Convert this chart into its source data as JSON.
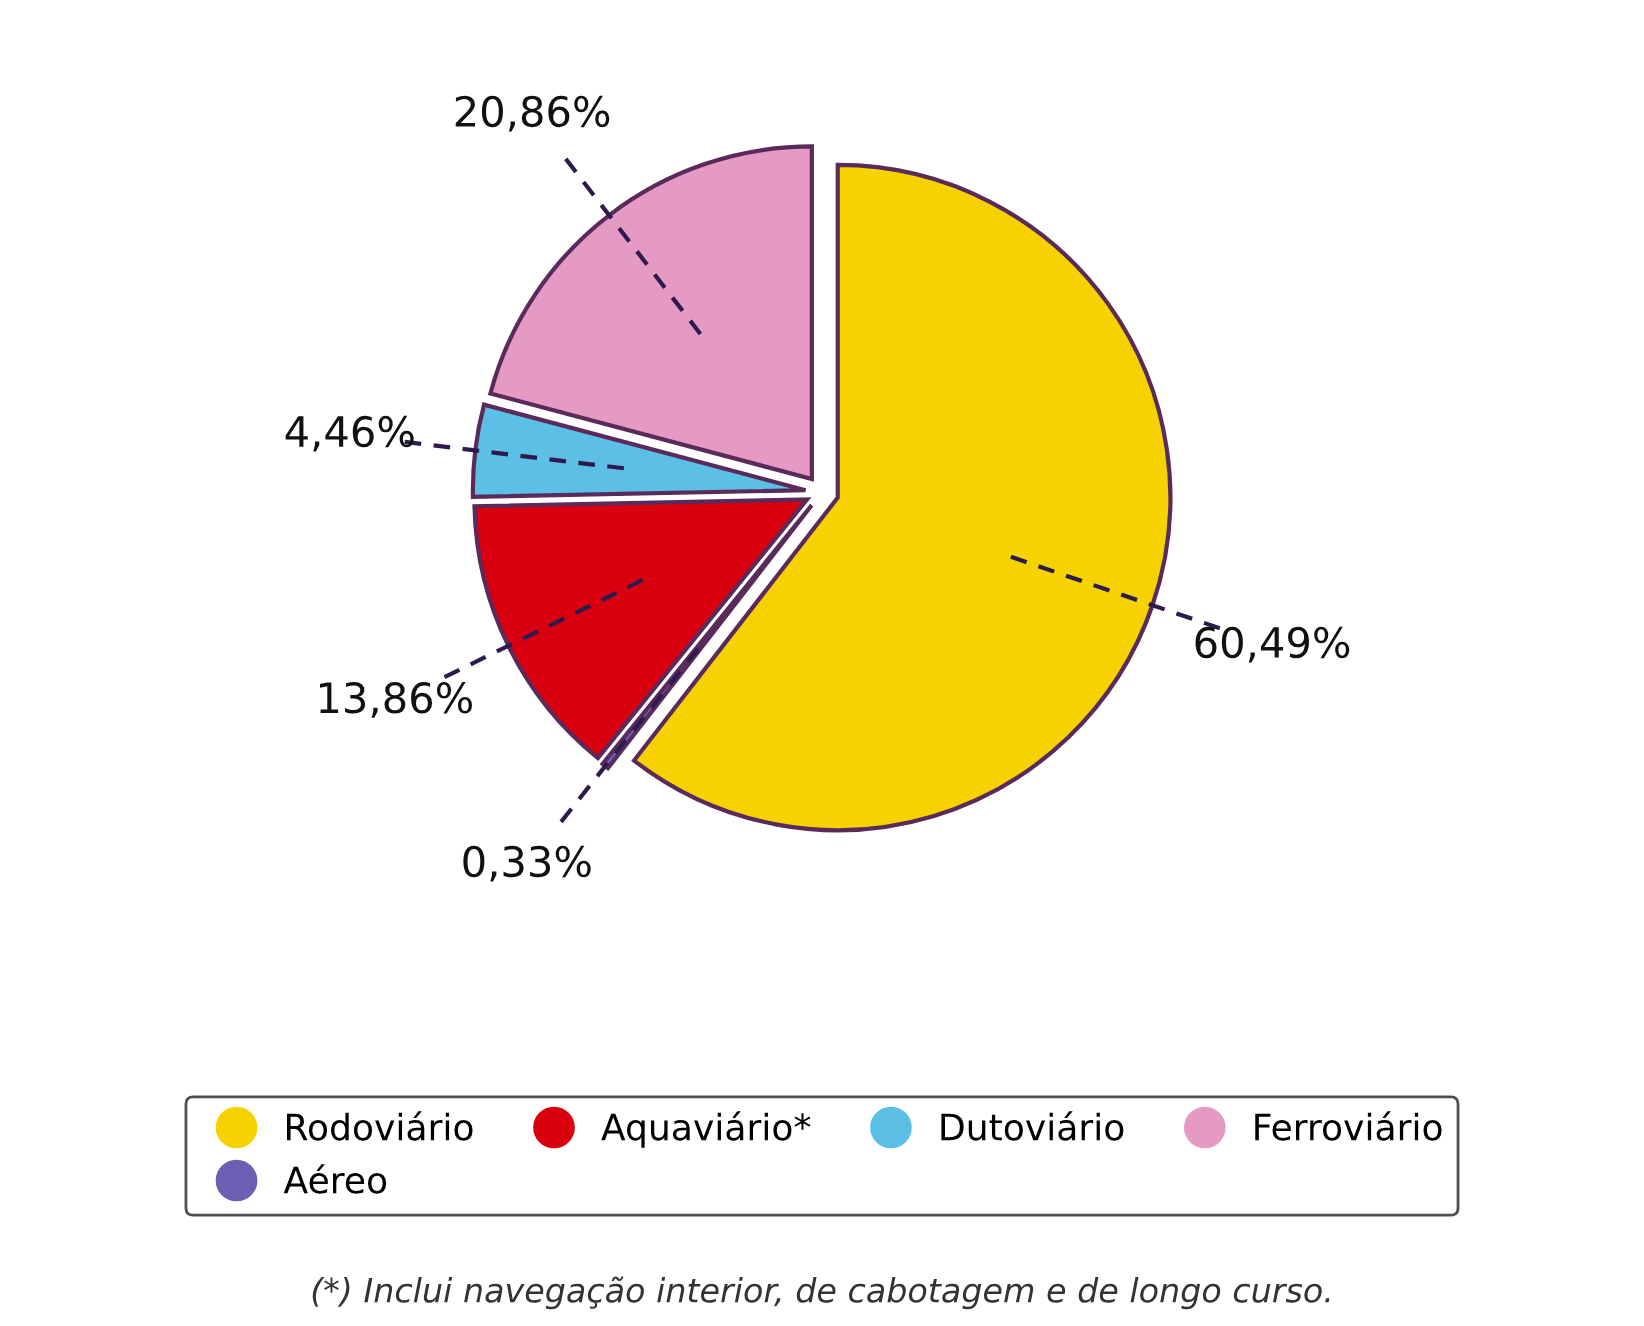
{
  "chart_data": {
    "type": "pie",
    "categories": [
      "Rodoviário",
      "Aéreo",
      "Aquaviário*",
      "Dutoviário",
      "Ferroviário"
    ],
    "values": [
      60.49,
      0.33,
      13.86,
      4.46,
      20.86
    ],
    "value_labels": [
      "60,49%",
      "0,33%",
      "13,86%",
      "4,46%",
      "20,86%"
    ],
    "colors": [
      "#f5d200",
      "#6b5fb5",
      "#d9000f",
      "#5bbfe6",
      "#e59ac3"
    ],
    "legend": "bottom",
    "annotations": [
      "(*) Inclui navegação interior, de cabotagem e de longo curso."
    ]
  }
}
